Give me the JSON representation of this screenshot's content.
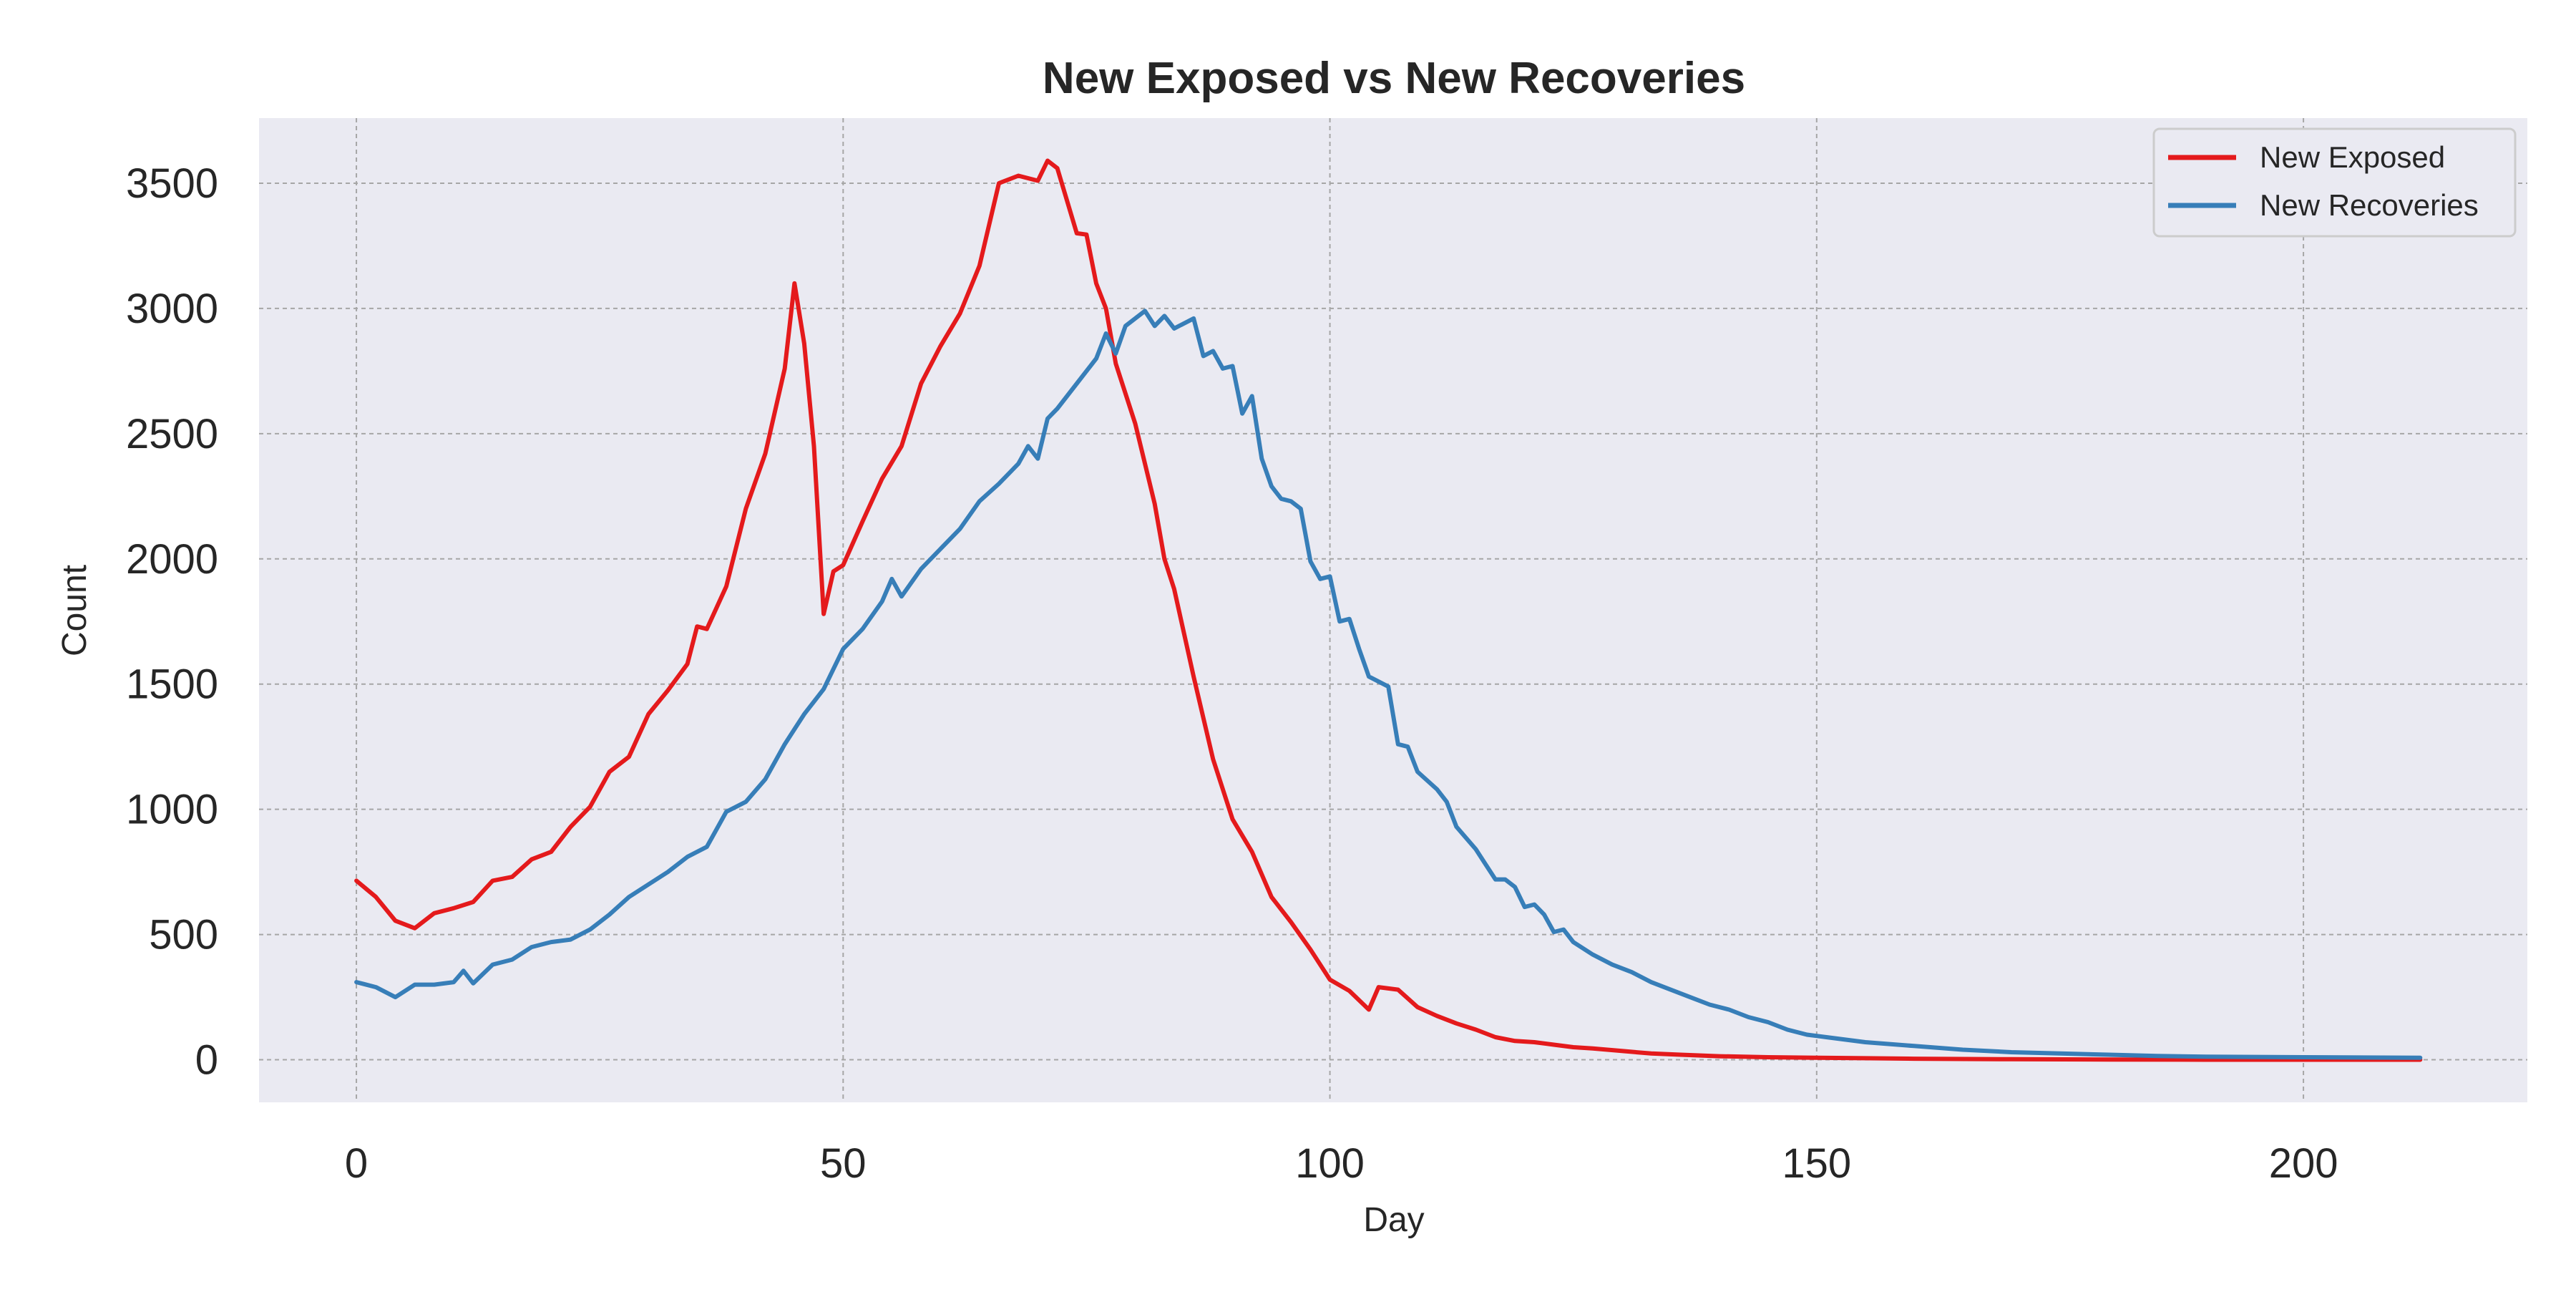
{
  "chart_data": {
    "type": "line",
    "title": "New Exposed vs New Recoveries",
    "xlabel": "Day",
    "ylabel": "Count",
    "xlim": [
      -10,
      223
    ],
    "ylim": [
      -170,
      3760
    ],
    "x_ticks": [
      0,
      50,
      100,
      150,
      200
    ],
    "y_ticks": [
      0,
      500,
      1000,
      1500,
      2000,
      2500,
      3000,
      3500
    ],
    "x_tick_labels": [
      "0",
      "50",
      "100",
      "150",
      "200"
    ],
    "y_tick_labels": [
      "0",
      "500",
      "1000",
      "1500",
      "2000",
      "2500",
      "3000",
      "3500"
    ],
    "grid": true,
    "legend_position": "top-right",
    "colors": {
      "plot_bg": "#EAEAF2",
      "grid": "#A6A6A6",
      "exposed": "#E41A1C",
      "recoveries": "#377EB8"
    },
    "series": [
      {
        "name": "New Exposed",
        "color": "#E41A1C",
        "points": [
          [
            0,
            715
          ],
          [
            2,
            650
          ],
          [
            4,
            555
          ],
          [
            6,
            525
          ],
          [
            8,
            585
          ],
          [
            10,
            605
          ],
          [
            12,
            630
          ],
          [
            14,
            715
          ],
          [
            16,
            730
          ],
          [
            18,
            800
          ],
          [
            20,
            830
          ],
          [
            22,
            930
          ],
          [
            24,
            1010
          ],
          [
            26,
            1150
          ],
          [
            28,
            1210
          ],
          [
            30,
            1380
          ],
          [
            32,
            1475
          ],
          [
            34,
            1580
          ],
          [
            35,
            1730
          ],
          [
            36,
            1720
          ],
          [
            38,
            1890
          ],
          [
            40,
            2200
          ],
          [
            42,
            2420
          ],
          [
            44,
            2760
          ],
          [
            45,
            3100
          ],
          [
            46,
            2860
          ],
          [
            47,
            2450
          ],
          [
            48,
            1780
          ],
          [
            49,
            1950
          ],
          [
            50,
            1975
          ],
          [
            52,
            2150
          ],
          [
            54,
            2320
          ],
          [
            56,
            2450
          ],
          [
            58,
            2700
          ],
          [
            60,
            2850
          ],
          [
            62,
            2980
          ],
          [
            64,
            3170
          ],
          [
            66,
            3500
          ],
          [
            68,
            3530
          ],
          [
            70,
            3510
          ],
          [
            71,
            3590
          ],
          [
            72,
            3560
          ],
          [
            74,
            3300
          ],
          [
            75,
            3295
          ],
          [
            76,
            3100
          ],
          [
            77,
            3000
          ],
          [
            78,
            2780
          ],
          [
            80,
            2540
          ],
          [
            82,
            2220
          ],
          [
            83,
            2000
          ],
          [
            84,
            1880
          ],
          [
            86,
            1530
          ],
          [
            88,
            1200
          ],
          [
            90,
            960
          ],
          [
            92,
            830
          ],
          [
            94,
            650
          ],
          [
            96,
            550
          ],
          [
            98,
            440
          ],
          [
            100,
            320
          ],
          [
            102,
            275
          ],
          [
            104,
            200
          ],
          [
            105,
            290
          ],
          [
            107,
            280
          ],
          [
            109,
            210
          ],
          [
            111,
            175
          ],
          [
            113,
            145
          ],
          [
            115,
            120
          ],
          [
            117,
            90
          ],
          [
            119,
            75
          ],
          [
            121,
            70
          ],
          [
            123,
            60
          ],
          [
            125,
            50
          ],
          [
            127,
            45
          ],
          [
            130,
            35
          ],
          [
            133,
            25
          ],
          [
            136,
            20
          ],
          [
            140,
            14
          ],
          [
            145,
            10
          ],
          [
            150,
            8
          ],
          [
            155,
            6
          ],
          [
            160,
            4
          ],
          [
            170,
            2
          ],
          [
            180,
            1
          ],
          [
            190,
            0
          ],
          [
            200,
            0
          ],
          [
            212,
            0
          ]
        ]
      },
      {
        "name": "New Recoveries",
        "color": "#377EB8",
        "points": [
          [
            0,
            310
          ],
          [
            2,
            290
          ],
          [
            4,
            250
          ],
          [
            6,
            300
          ],
          [
            8,
            300
          ],
          [
            10,
            310
          ],
          [
            11,
            355
          ],
          [
            12,
            305
          ],
          [
            14,
            380
          ],
          [
            16,
            400
          ],
          [
            18,
            450
          ],
          [
            20,
            470
          ],
          [
            22,
            480
          ],
          [
            24,
            520
          ],
          [
            26,
            580
          ],
          [
            28,
            650
          ],
          [
            30,
            700
          ],
          [
            32,
            750
          ],
          [
            34,
            810
          ],
          [
            36,
            850
          ],
          [
            38,
            990
          ],
          [
            40,
            1030
          ],
          [
            42,
            1120
          ],
          [
            44,
            1260
          ],
          [
            46,
            1380
          ],
          [
            48,
            1480
          ],
          [
            50,
            1640
          ],
          [
            52,
            1720
          ],
          [
            54,
            1830
          ],
          [
            55,
            1920
          ],
          [
            56,
            1850
          ],
          [
            58,
            1960
          ],
          [
            60,
            2040
          ],
          [
            62,
            2120
          ],
          [
            64,
            2230
          ],
          [
            66,
            2300
          ],
          [
            68,
            2380
          ],
          [
            69,
            2450
          ],
          [
            70,
            2400
          ],
          [
            71,
            2560
          ],
          [
            72,
            2600
          ],
          [
            74,
            2700
          ],
          [
            76,
            2800
          ],
          [
            77,
            2900
          ],
          [
            78,
            2820
          ],
          [
            79,
            2930
          ],
          [
            80,
            2960
          ],
          [
            81,
            2990
          ],
          [
            82,
            2930
          ],
          [
            83,
            2970
          ],
          [
            84,
            2920
          ],
          [
            86,
            2960
          ],
          [
            87,
            2810
          ],
          [
            88,
            2830
          ],
          [
            89,
            2760
          ],
          [
            90,
            2770
          ],
          [
            91,
            2580
          ],
          [
            92,
            2650
          ],
          [
            93,
            2400
          ],
          [
            94,
            2290
          ],
          [
            95,
            2240
          ],
          [
            96,
            2230
          ],
          [
            97,
            2200
          ],
          [
            98,
            1990
          ],
          [
            99,
            1920
          ],
          [
            100,
            1930
          ],
          [
            101,
            1750
          ],
          [
            102,
            1760
          ],
          [
            103,
            1640
          ],
          [
            104,
            1530
          ],
          [
            106,
            1490
          ],
          [
            107,
            1260
          ],
          [
            108,
            1250
          ],
          [
            109,
            1150
          ],
          [
            111,
            1080
          ],
          [
            112,
            1030
          ],
          [
            113,
            930
          ],
          [
            115,
            840
          ],
          [
            116,
            780
          ],
          [
            117,
            720
          ],
          [
            118,
            720
          ],
          [
            119,
            690
          ],
          [
            120,
            610
          ],
          [
            121,
            620
          ],
          [
            122,
            580
          ],
          [
            123,
            510
          ],
          [
            124,
            520
          ],
          [
            125,
            470
          ],
          [
            127,
            420
          ],
          [
            129,
            380
          ],
          [
            131,
            350
          ],
          [
            133,
            310
          ],
          [
            135,
            280
          ],
          [
            137,
            250
          ],
          [
            139,
            220
          ],
          [
            141,
            200
          ],
          [
            143,
            170
          ],
          [
            145,
            150
          ],
          [
            147,
            120
          ],
          [
            149,
            100
          ],
          [
            151,
            90
          ],
          [
            155,
            70
          ],
          [
            160,
            55
          ],
          [
            165,
            40
          ],
          [
            170,
            30
          ],
          [
            175,
            25
          ],
          [
            180,
            20
          ],
          [
            185,
            15
          ],
          [
            190,
            12
          ],
          [
            200,
            10
          ],
          [
            212,
            8
          ]
        ]
      }
    ]
  }
}
